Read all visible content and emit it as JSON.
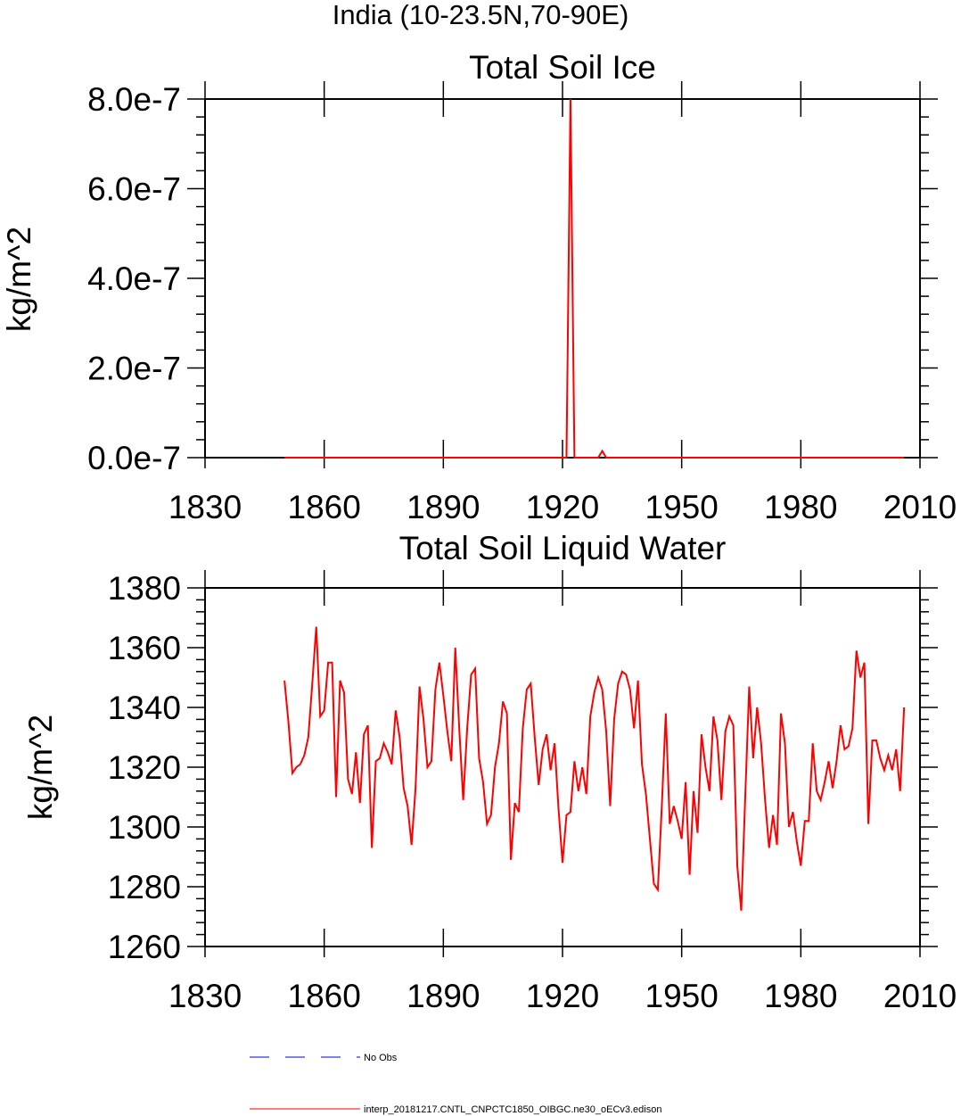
{
  "page": {
    "title": "India (10-23.5N,70-90E)"
  },
  "chart_data": [
    {
      "type": "line",
      "title": "Total Soil Ice",
      "xlabel": "",
      "ylabel": "kg/m^2",
      "xlim": [
        1830,
        2010
      ],
      "ylim": [
        0,
        8e-07
      ],
      "xticks": [
        1830,
        1860,
        1890,
        1920,
        1950,
        1980,
        2010
      ],
      "xtick_labels": [
        "1830",
        "1860",
        "1890",
        "1920",
        "1950",
        "1980",
        "2010"
      ],
      "yticks": [
        0,
        2e-07,
        4e-07,
        6e-07,
        8e-07
      ],
      "ytick_labels": [
        "0.0e-7",
        "2.0e-7",
        "4.0e-7",
        "6.0e-7",
        "8.0e-7"
      ],
      "grid": false,
      "series": [
        {
          "color": "#ff0000",
          "x": [
            1850,
            1921,
            1922,
            1923,
            1929,
            1930,
            1931,
            2006
          ],
          "y": [
            0,
            0,
            8e-07,
            0,
            0,
            1.5e-08,
            0,
            0
          ]
        }
      ]
    },
    {
      "type": "line",
      "title": "Total Soil Liquid Water",
      "xlabel": "",
      "ylabel": "kg/m^2",
      "xlim": [
        1830,
        2010
      ],
      "ylim": [
        1260,
        1380
      ],
      "xticks": [
        1830,
        1860,
        1890,
        1920,
        1950,
        1980,
        2010
      ],
      "xtick_labels": [
        "1830",
        "1860",
        "1890",
        "1920",
        "1950",
        "1980",
        "2010"
      ],
      "yticks": [
        1260,
        1280,
        1300,
        1320,
        1340,
        1360,
        1380
      ],
      "ytick_labels": [
        "1260",
        "1280",
        "1300",
        "1320",
        "1340",
        "1360",
        "1380"
      ],
      "grid": false,
      "series": [
        {
          "color": "#ff0000",
          "x_start": 1850,
          "x_step": 1,
          "y": [
            1349,
            1335,
            1318,
            1320,
            1321,
            1324,
            1330,
            1348,
            1367,
            1337,
            1339,
            1355,
            1355,
            1310,
            1349,
            1345,
            1316,
            1311,
            1325,
            1308,
            1331,
            1334,
            1293,
            1322,
            1323,
            1328,
            1325,
            1321,
            1339,
            1330,
            1313,
            1307,
            1294,
            1313,
            1347,
            1336,
            1320,
            1322,
            1346,
            1355,
            1344,
            1332,
            1322,
            1360,
            1333,
            1309,
            1333,
            1351,
            1353,
            1323,
            1315,
            1301,
            1304,
            1320,
            1328,
            1342,
            1338,
            1289,
            1308,
            1305,
            1333,
            1346,
            1348,
            1330,
            1314,
            1326,
            1331,
            1319,
            1328,
            1306,
            1288,
            1304,
            1305,
            1322,
            1312,
            1320,
            1311,
            1337,
            1345,
            1350,
            1346,
            1332,
            1307,
            1336,
            1348,
            1352,
            1351,
            1346,
            1333,
            1349,
            1321,
            1311,
            1296,
            1281,
            1279,
            1307,
            1338,
            1301,
            1307,
            1302,
            1296,
            1315,
            1284,
            1312,
            1298,
            1331,
            1320,
            1312,
            1337,
            1329,
            1309,
            1332,
            1337,
            1334,
            1287,
            1272,
            1310,
            1347,
            1323,
            1340,
            1328,
            1309,
            1293,
            1304,
            1294,
            1338,
            1328,
            1300,
            1305,
            1295,
            1287,
            1302,
            1302,
            1328,
            1312,
            1309,
            1315,
            1322,
            1313,
            1322,
            1334,
            1326,
            1327,
            1333,
            1359,
            1350,
            1355,
            1301,
            1329,
            1329,
            1323,
            1319,
            1324,
            1319,
            1326,
            1312,
            1340
          ]
        }
      ]
    }
  ],
  "legend": [
    {
      "label": "No Obs",
      "color": "#0000cc",
      "dash": true
    },
    {
      "label": "interp_20181217.CNTL_CNPCTC1850_OIBGC.ne30_oECv3.edison",
      "color": "#ff0000",
      "dash": false
    }
  ]
}
